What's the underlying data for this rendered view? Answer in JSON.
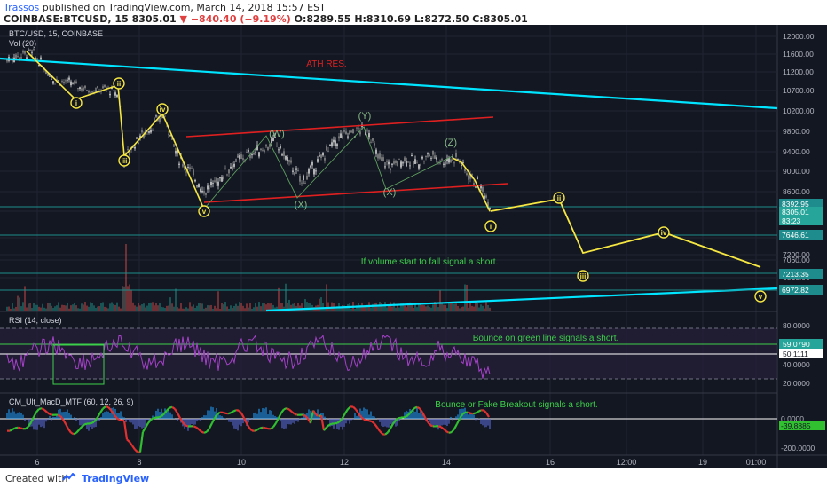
{
  "header": {
    "author": "Trassos",
    "published": "published on TradingView.com, March 14, 2018 15:57 EST",
    "symbol": "COINBASE:BTCUSD, 15",
    "last": "8305.01",
    "change": "−840.40 (−9.19%)",
    "open": "O:8289.55",
    "high": "H:8310.69",
    "low": "L:8272.50",
    "close": "C:8305.01"
  },
  "footer": {
    "created": "Created with",
    "brand": "TradingView"
  },
  "chart_data": {
    "type": "line",
    "symbol_label": "BTC/USD, 15, COINBASE",
    "vol_label": "Vol (20)",
    "price_axis": [
      "12000.00",
      "11600.00",
      "11200.00",
      "10700.00",
      "10200.00",
      "9800.00",
      "9400.00",
      "9000.00",
      "8600.00",
      "8200.00",
      "7600.00",
      "7200.00",
      "7060.00",
      "6810.00"
    ],
    "x_ticks": [
      "6",
      "8",
      "10",
      "12",
      "14",
      "16",
      "12:00",
      "19",
      "01:00"
    ],
    "price_tags": [
      {
        "label": "8392.95",
        "color": "#1e8c8c"
      },
      {
        "label": "8305.01",
        "color": "#26a69a"
      },
      {
        "label": "83:23",
        "color": "#26a69a"
      },
      {
        "label": "7646.61",
        "color": "#1e8c8c"
      },
      {
        "label": "7213.35",
        "color": "#1e8c8c"
      },
      {
        "label": "6972.82",
        "color": "#1e8c8c"
      }
    ],
    "annotations": {
      "ath": "ATH RES.",
      "volume": "If volume start to fall signal a short.",
      "rsi": "Bounce on green line signals a short.",
      "macd": "Bounce or Fake Breakout signals a short."
    },
    "wave_labels": [
      "i",
      "ii",
      "iii",
      "iv",
      "v",
      "(W)",
      "(X)",
      "(Y)",
      "(X)",
      "(Z)",
      "i",
      "ii",
      "iii",
      "iv",
      "v"
    ],
    "projection": {
      "labels": [
        "i",
        "ii",
        "iii",
        "iv",
        "v"
      ],
      "prices": [
        8200,
        8450,
        7240,
        7720,
        6960
      ]
    },
    "rsi": {
      "label": "RSI (14, close)",
      "axis": [
        "80.0000",
        "59.0790",
        "50.1111",
        "40.0000",
        "20.0000"
      ]
    },
    "macd": {
      "label": "CM_Ult_MacD_MTF (60, 12, 26, 9)",
      "axis": [
        "0.0000",
        "-39.8885",
        "-200.0000"
      ]
    },
    "colors": {
      "background": "#131722",
      "trendline": "#00e5ff",
      "channel": "#e02020",
      "wave": "#f5e642",
      "rsi": "#a442c8",
      "text_green": "#3cd14a",
      "text_red": "#e02020"
    }
  }
}
